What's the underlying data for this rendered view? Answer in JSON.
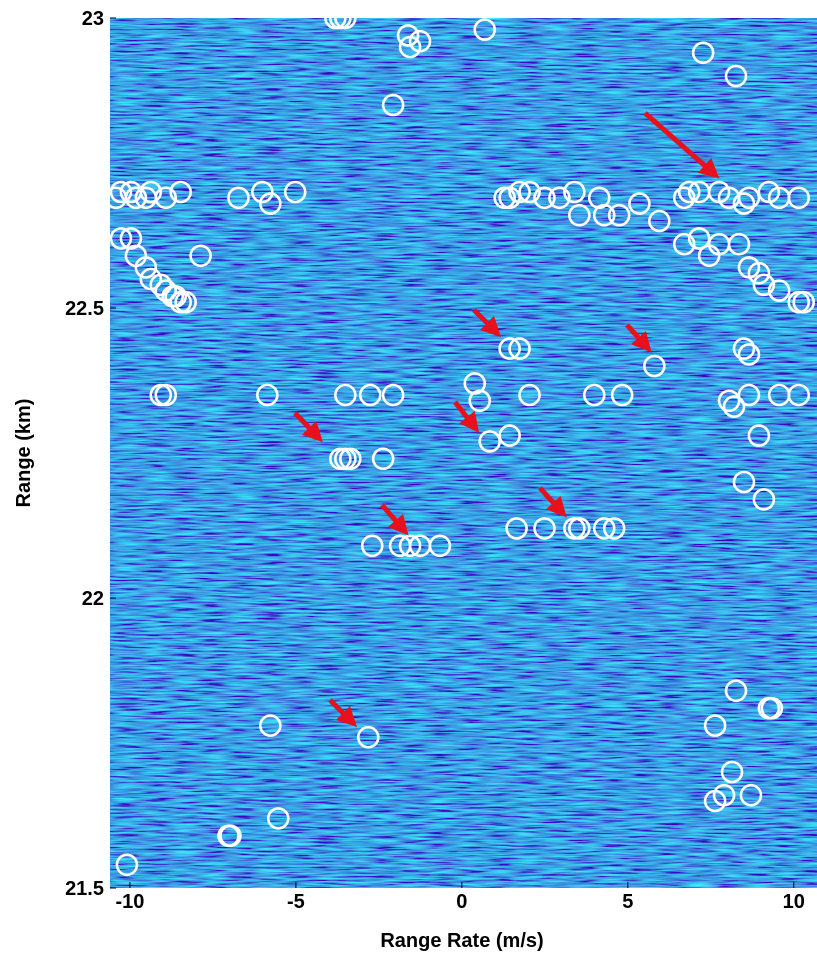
{
  "chart_data": {
    "type": "scatter",
    "x_label": "Range Rate (m/s)",
    "y_label": "Range (km)",
    "xlim": [
      -10.6,
      10.7
    ],
    "ylim": [
      21.5,
      23
    ],
    "xticks": [
      -10,
      -5,
      0,
      5,
      10
    ],
    "yticks": [
      21.5,
      22,
      22.5,
      23
    ],
    "color": "#ffffff",
    "x": [
      -3.81,
      -3.66,
      -3.51,
      -1.62,
      -1.26,
      -1.56,
      0.69,
      -2.07,
      7.27,
      8.26,
      -10.42,
      -10.27,
      -9.97,
      -9.82,
      -9.52,
      -9.37,
      -8.92,
      -8.47,
      -6.73,
      -6.01,
      -5.77,
      -5.02,
      -10.27,
      -9.97,
      -9.82,
      -9.52,
      -9.37,
      -9.07,
      -8.92,
      -8.71,
      -8.62,
      -8.47,
      -8.32,
      -7.87,
      1.29,
      1.44,
      1.74,
      2.04,
      2.49,
      2.94,
      3.39,
      3.54,
      4.14,
      4.29,
      4.74,
      5.35,
      5.95,
      6.7,
      6.85,
      7.15,
      7.75,
      8.05,
      8.5,
      8.65,
      9.25,
      9.56,
      10.15,
      6.7,
      7.15,
      7.45,
      7.75,
      8.35,
      8.65,
      8.95,
      9.1,
      9.56,
      10.15,
      10.3,
      1.44,
      1.74,
      5.8,
      8.5,
      8.65,
      -9.07,
      -8.92,
      -5.86,
      -3.51,
      -2.76,
      -2.07,
      0.39,
      0.54,
      2.04,
      3.99,
      4.83,
      8.05,
      8.2,
      8.65,
      9.56,
      10.15,
      -3.66,
      -3.51,
      -3.36,
      -2.37,
      0.84,
      1.44,
      8.95,
      8.5,
      9.1,
      1.65,
      2.49,
      3.39,
      3.54,
      4.29,
      4.59,
      -2.7,
      -1.86,
      -1.56,
      -1.26,
      -0.66,
      8.26,
      9.25,
      9.34,
      7.63,
      -5.77,
      -2.82,
      8.14,
      7.63,
      7.9,
      8.71,
      -5.53,
      -7.03,
      -6.97,
      -10.09
    ],
    "y": [
      23.0,
      23.0,
      23.0,
      22.97,
      22.96,
      22.95,
      22.98,
      22.85,
      22.94,
      22.9,
      22.69,
      22.7,
      22.7,
      22.69,
      22.69,
      22.7,
      22.69,
      22.7,
      22.69,
      22.7,
      22.68,
      22.7,
      22.62,
      22.62,
      22.59,
      22.57,
      22.55,
      22.54,
      22.53,
      22.52,
      22.52,
      22.51,
      22.51,
      22.59,
      22.69,
      22.69,
      22.7,
      22.7,
      22.69,
      22.69,
      22.7,
      22.66,
      22.69,
      22.66,
      22.66,
      22.68,
      22.65,
      22.69,
      22.7,
      22.7,
      22.7,
      22.69,
      22.68,
      22.69,
      22.7,
      22.69,
      22.69,
      22.61,
      22.62,
      22.59,
      22.61,
      22.61,
      22.57,
      22.56,
      22.54,
      22.53,
      22.51,
      22.51,
      22.43,
      22.43,
      22.4,
      22.43,
      22.42,
      22.35,
      22.35,
      22.35,
      22.35,
      22.35,
      22.35,
      22.37,
      22.34,
      22.35,
      22.35,
      22.35,
      22.34,
      22.33,
      22.35,
      22.35,
      22.35,
      22.24,
      22.24,
      22.24,
      22.24,
      22.27,
      22.28,
      22.28,
      22.2,
      22.17,
      22.12,
      22.12,
      22.12,
      22.12,
      22.12,
      22.12,
      22.09,
      22.09,
      22.09,
      22.09,
      22.09,
      21.84,
      21.81,
      21.81,
      21.78,
      21.78,
      21.76,
      21.7,
      21.65,
      21.66,
      21.66,
      21.62,
      21.59,
      21.59,
      21.54
    ]
  }
}
